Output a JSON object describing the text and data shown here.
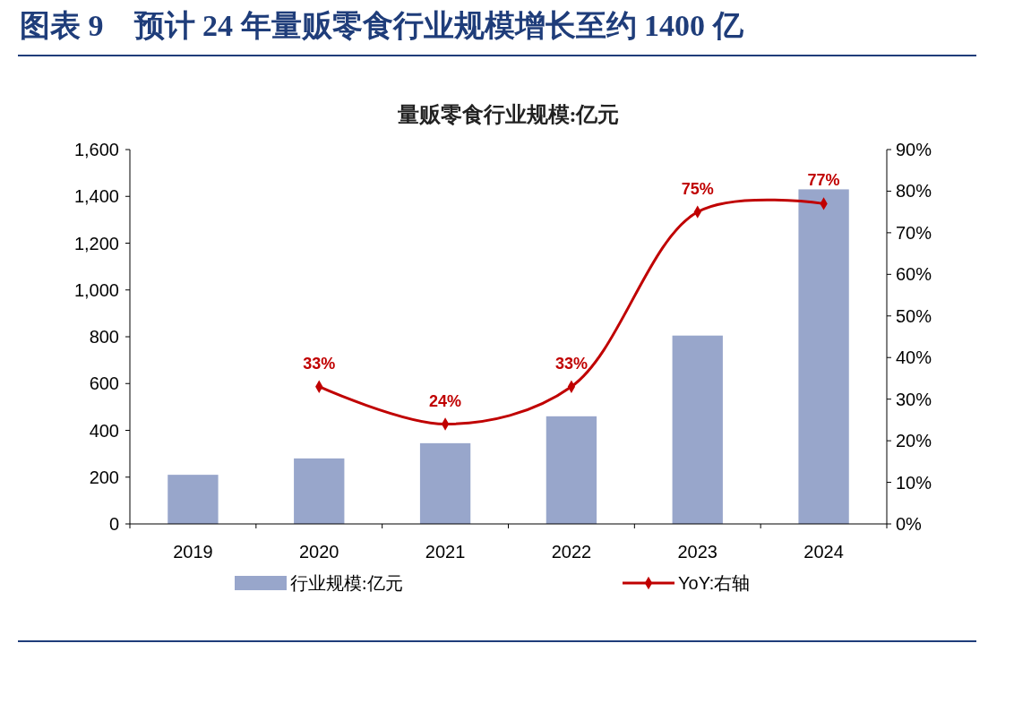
{
  "chart_data": {
    "type": "bar",
    "title": "图表 9　预计 24 年量贩零食行业规模增长至约 1400 亿",
    "subtitle": "量贩零食行业规模:亿元",
    "categories": [
      "2019",
      "2020",
      "2021",
      "2022",
      "2023",
      "2024"
    ],
    "series": [
      {
        "name": "行业规模:亿元",
        "color": "#98a6cb",
        "values": [
          210,
          280,
          345,
          460,
          805,
          1430
        ]
      },
      {
        "name": "YoY:右轴",
        "type": "line",
        "axis": "y2",
        "color": "#c00000",
        "marker": "diamond",
        "values": [
          null,
          33,
          24,
          33,
          75,
          77
        ],
        "value_labels": [
          null,
          "33%",
          "24%",
          "33%",
          "75%",
          "77%"
        ]
      }
    ],
    "ylim": [
      0,
      1600
    ],
    "yticks": [
      0,
      200,
      400,
      {
        "value": 600,
        "label": "600"
      },
      800,
      {
        "value": 1000,
        "label": "1,000"
      },
      {
        "value": 1200,
        "label": "1,200"
      },
      {
        "value": 1400,
        "label": "1,400"
      },
      {
        "value": 1600,
        "label": "1,600"
      }
    ],
    "y2lim": [
      0,
      90
    ],
    "y2ticks": [
      {
        "value": 0,
        "label": "0%"
      },
      {
        "value": 10,
        "label": "10%"
      },
      {
        "value": 20,
        "label": "20%"
      },
      {
        "value": 30,
        "label": "30%"
      },
      {
        "value": 40,
        "label": "40%"
      },
      {
        "value": 50,
        "label": "50%"
      },
      {
        "value": 60,
        "label": "60%"
      },
      {
        "value": 70,
        "label": "70%"
      },
      {
        "value": 80,
        "label": "80%"
      },
      {
        "value": 90,
        "label": "90%"
      }
    ],
    "legend": "bottom",
    "grid": false
  }
}
